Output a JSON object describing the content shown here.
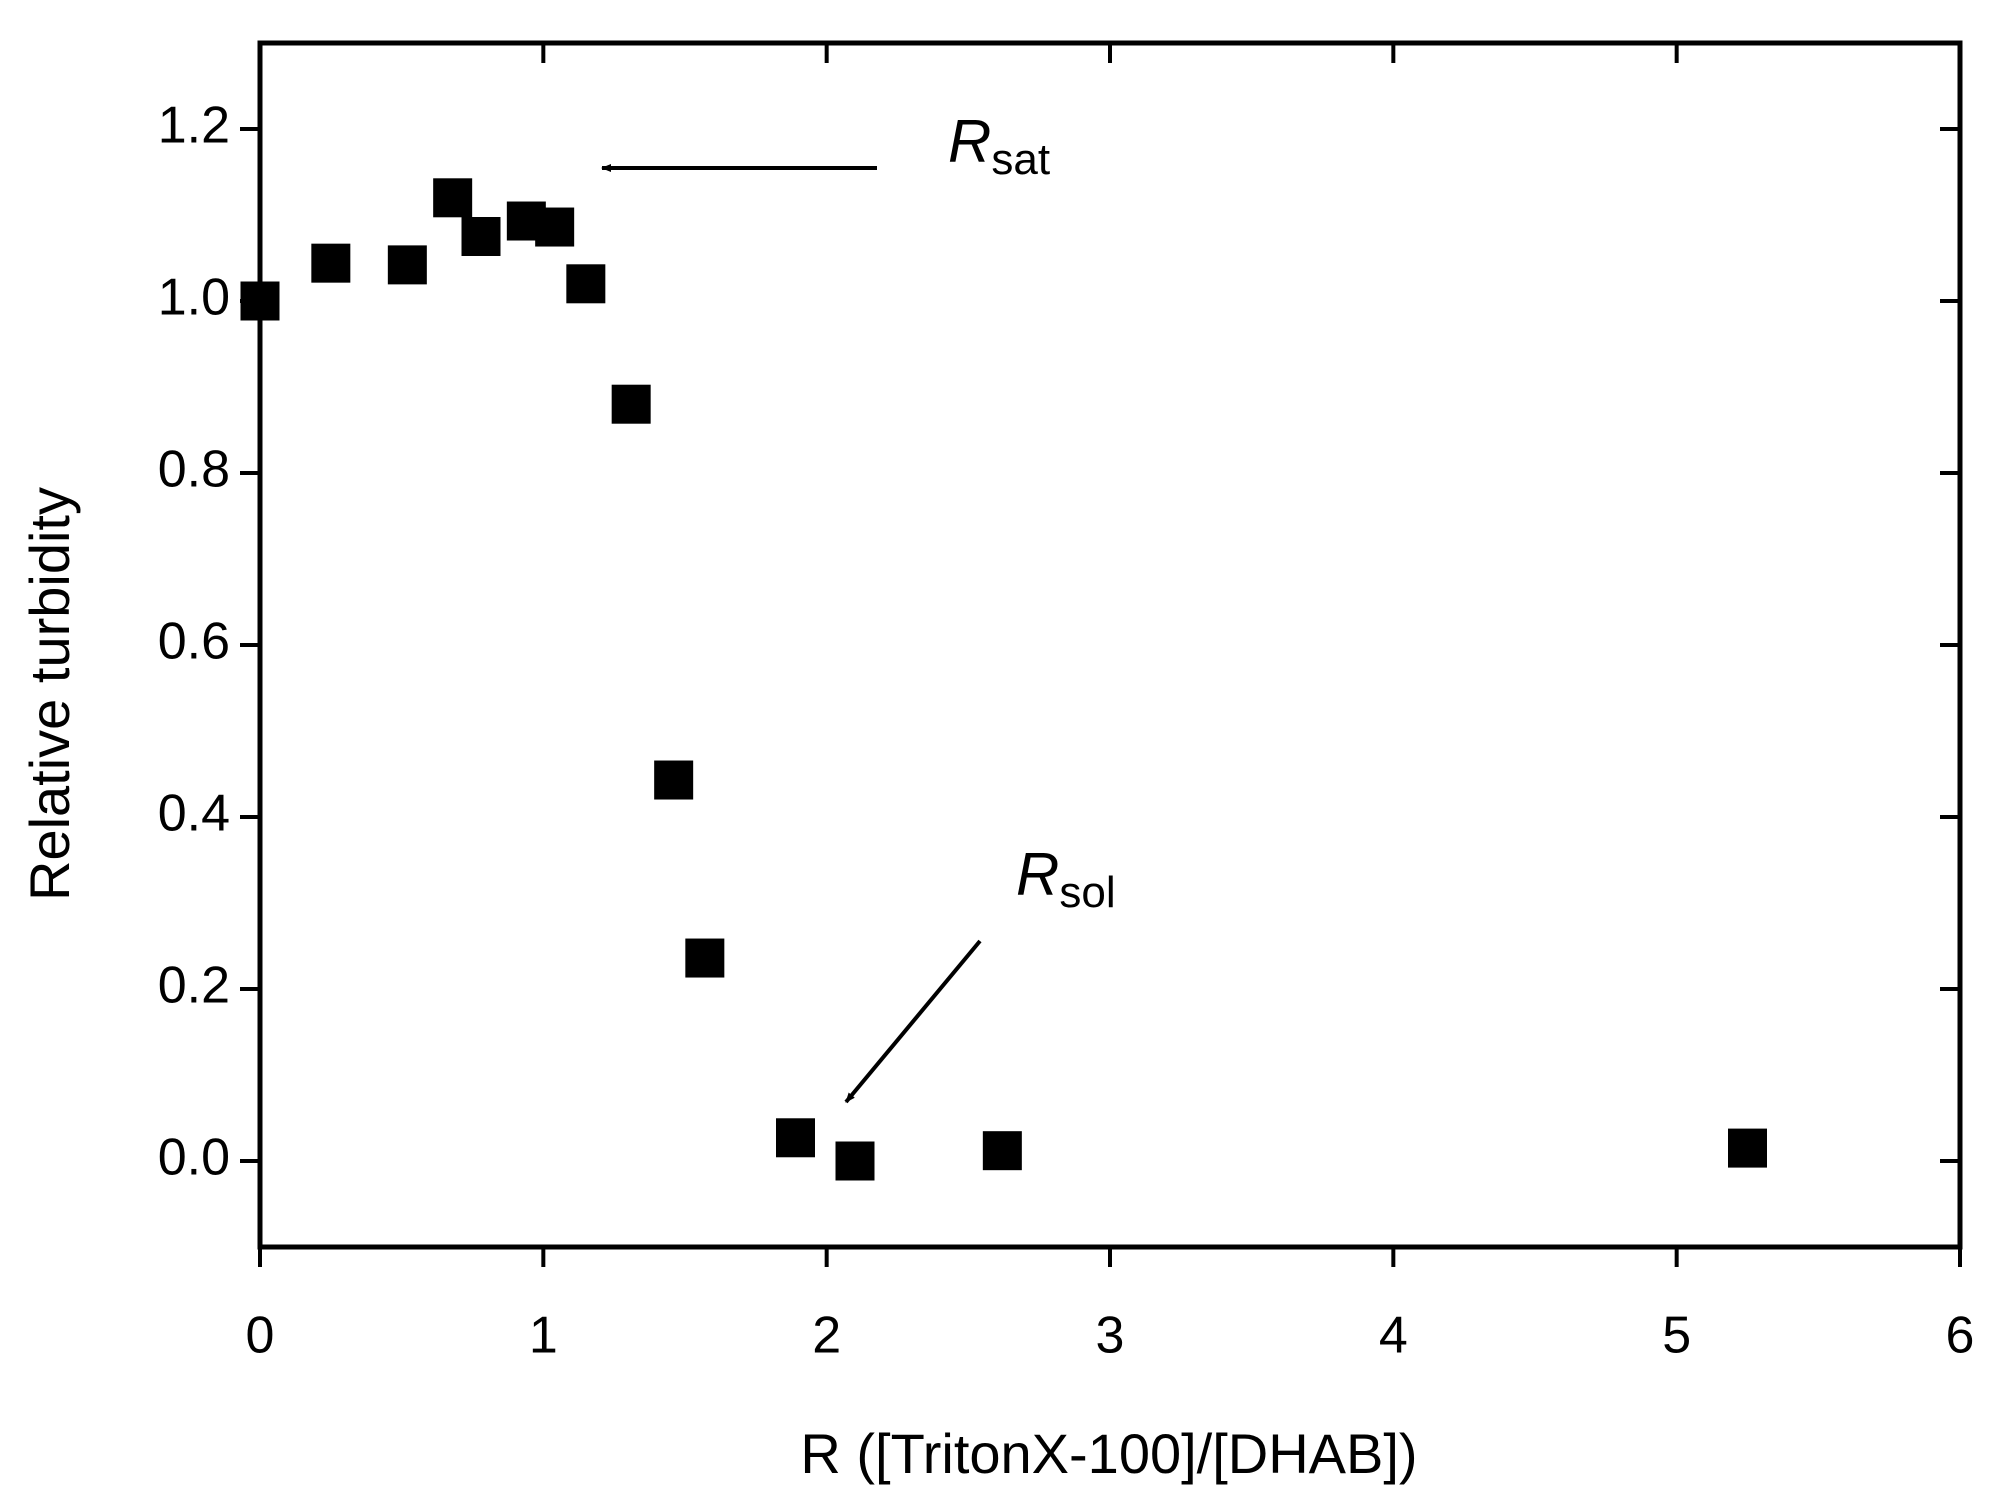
{
  "chart_data": {
    "type": "scatter",
    "x_label": "R ([TritonX-100]/[DHAB])",
    "y_label": "Relative turbidity",
    "x": [
      0,
      0.25,
      0.52,
      0.68,
      0.78,
      0.94,
      1.04,
      1.15,
      1.31,
      1.46,
      1.57,
      1.89,
      2.1,
      2.62,
      5.25
    ],
    "values": [
      1.0,
      1.044,
      1.042,
      1.12,
      1.075,
      1.093,
      1.086,
      1.02,
      0.88,
      0.443,
      0.236,
      0.027,
      0.0,
      0.012,
      0.015
    ],
    "color": "#000000",
    "xlim": [
      0,
      6
    ],
    "xticks": [
      0,
      1,
      2,
      3,
      4,
      5,
      6
    ],
    "ylim": [
      -0.1,
      1.3
    ],
    "yticks": [
      {
        "value": 0,
        "label": "0.0"
      },
      0.2,
      0.4,
      0.6,
      0.8,
      {
        "value": 1,
        "label": "1.0"
      },
      1.2
    ],
    "annotations": [
      {
        "text": "R",
        "sub": "sat"
      },
      {
        "text": "R",
        "sub": "sol"
      }
    ]
  }
}
